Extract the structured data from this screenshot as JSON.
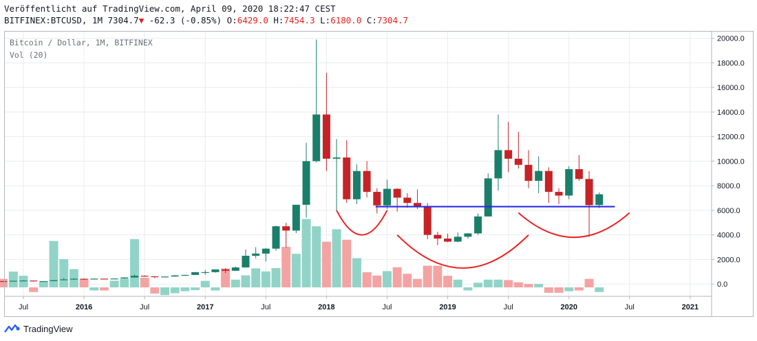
{
  "header": {
    "published": "Veröffentlicht auf TradingView.com, April 09, 2020 18:22:47 CEST",
    "symbol": "BITFINEX:BTCUSD, 1M",
    "last": "7304.7",
    "change_arrow": "▼",
    "change": "-62.3 (-0.85%)",
    "o_label": "O:",
    "o_value": "6429.0",
    "h_label": "H:",
    "h_value": "7454.3",
    "l_label": "L:",
    "l_value": "6180.0",
    "c_label": "C:",
    "c_value": "7304.7"
  },
  "legend": {
    "series": "Bitcoin / Dollar, 1M, BITFINEX",
    "volume": "Vol (20)"
  },
  "footer": {
    "brand": "TradingView"
  },
  "colors": {
    "up": "#1a7f6a",
    "down": "#c62326",
    "vol_up": "#91d4c7",
    "vol_down": "#f4a3a3",
    "support_line": "#2b2bdf",
    "annotation": "#ee2222",
    "grid": "#e8ebef",
    "axis_text": "#131722"
  },
  "chart_data": {
    "type": "candlestick",
    "interval": "1M",
    "ylim": [
      -1000,
      20600
    ],
    "y_ticks": [
      "20000.0",
      "18000.0",
      "16000.0",
      "14000.0",
      "12000.0",
      "10000.0",
      "8000.0",
      "6000.0",
      "4000.0",
      "2000.0",
      "0.0"
    ],
    "x_ticks": [
      {
        "label": "Jul",
        "date": "2015-07"
      },
      {
        "label": "2016",
        "date": "2016-01"
      },
      {
        "label": "Jul",
        "date": "2016-07"
      },
      {
        "label": "2017",
        "date": "2017-01"
      },
      {
        "label": "Jul",
        "date": "2017-07"
      },
      {
        "label": "2018",
        "date": "2018-01"
      },
      {
        "label": "Jul",
        "date": "2018-07"
      },
      {
        "label": "2019",
        "date": "2019-01"
      },
      {
        "label": "Jul",
        "date": "2019-07"
      },
      {
        "label": "2020",
        "date": "2020-01"
      },
      {
        "label": "Jul",
        "date": "2020-07"
      },
      {
        "label": "2021",
        "date": "2021-01"
      }
    ],
    "candles": [
      {
        "date": "2015-05",
        "open": 236,
        "high": 245,
        "low": 225,
        "close": 230,
        "volume": 550
      },
      {
        "date": "2015-06",
        "open": 230,
        "high": 268,
        "low": 220,
        "close": 263,
        "volume": 1020
      },
      {
        "date": "2015-07",
        "open": 263,
        "high": 318,
        "low": 255,
        "close": 284,
        "volume": 750
      },
      {
        "date": "2015-08",
        "open": 284,
        "high": 285,
        "low": 195,
        "close": 230,
        "volume": -300
      },
      {
        "date": "2015-09",
        "open": 230,
        "high": 245,
        "low": 225,
        "close": 236,
        "volume": 400
      },
      {
        "date": "2015-10",
        "open": 236,
        "high": 325,
        "low": 235,
        "close": 314,
        "volume": 3000
      },
      {
        "date": "2015-11",
        "open": 314,
        "high": 502,
        "low": 300,
        "close": 377,
        "volume": 1820
      },
      {
        "date": "2015-12",
        "open": 377,
        "high": 465,
        "low": 350,
        "close": 430,
        "volume": 1180
      },
      {
        "date": "2016-01",
        "open": 430,
        "high": 462,
        "low": 350,
        "close": 368,
        "volume": 550
      },
      {
        "date": "2016-02",
        "open": 368,
        "high": 443,
        "low": 367,
        "close": 437,
        "volume": -200
      },
      {
        "date": "2016-03",
        "open": 437,
        "high": 440,
        "low": 400,
        "close": 416,
        "volume": -200
      },
      {
        "date": "2016-04",
        "open": 416,
        "high": 468,
        "low": 415,
        "close": 448,
        "volume": 430
      },
      {
        "date": "2016-05",
        "open": 448,
        "high": 550,
        "low": 435,
        "close": 532,
        "volume": 550
      },
      {
        "date": "2016-06",
        "open": 532,
        "high": 780,
        "low": 515,
        "close": 673,
        "volume": 3120
      },
      {
        "date": "2016-07",
        "open": 673,
        "high": 705,
        "low": 590,
        "close": 624,
        "volume": 620
      },
      {
        "date": "2016-08",
        "open": 624,
        "high": 630,
        "low": 470,
        "close": 575,
        "volume": -400
      },
      {
        "date": "2016-09",
        "open": 575,
        "high": 628,
        "low": 570,
        "close": 609,
        "volume": -500
      },
      {
        "date": "2016-10",
        "open": 609,
        "high": 730,
        "low": 600,
        "close": 700,
        "volume": -380
      },
      {
        "date": "2016-11",
        "open": 700,
        "high": 755,
        "low": 680,
        "close": 742,
        "volume": -250
      },
      {
        "date": "2016-12",
        "open": 742,
        "high": 980,
        "low": 740,
        "close": 965,
        "volume": -180
      },
      {
        "date": "2017-01",
        "open": 965,
        "high": 1150,
        "low": 750,
        "close": 970,
        "volume": 420
      },
      {
        "date": "2017-02",
        "open": 970,
        "high": 1200,
        "low": 920,
        "close": 1190,
        "volume": -200
      },
      {
        "date": "2017-03",
        "open": 1190,
        "high": 1300,
        "low": 890,
        "close": 1080,
        "volume": 1220
      },
      {
        "date": "2017-04",
        "open": 1080,
        "high": 1420,
        "low": 1075,
        "close": 1350,
        "volume": 500
      },
      {
        "date": "2017-05",
        "open": 1350,
        "high": 2800,
        "low": 1350,
        "close": 2300,
        "volume": 780
      },
      {
        "date": "2017-06",
        "open": 2300,
        "high": 3000,
        "low": 2100,
        "close": 2480,
        "volume": 1230
      },
      {
        "date": "2017-07",
        "open": 2480,
        "high": 2920,
        "low": 1830,
        "close": 2880,
        "volume": 1030
      },
      {
        "date": "2017-08",
        "open": 2880,
        "high": 4750,
        "low": 2700,
        "close": 4700,
        "volume": 1250
      },
      {
        "date": "2017-09",
        "open": 4700,
        "high": 4980,
        "low": 2950,
        "close": 4350,
        "volume": 2620
      },
      {
        "date": "2017-10",
        "open": 4350,
        "high": 6450,
        "low": 4150,
        "close": 6450,
        "volume": 2170
      },
      {
        "date": "2017-11",
        "open": 6450,
        "high": 11500,
        "low": 5400,
        "close": 10000,
        "volume": 4420
      },
      {
        "date": "2017-12",
        "open": 10000,
        "high": 19900,
        "low": 9900,
        "close": 13800,
        "volume": 3950
      },
      {
        "date": "2018-01",
        "open": 13800,
        "high": 17200,
        "low": 9200,
        "close": 10200,
        "volume": 2950
      },
      {
        "date": "2018-02",
        "open": 10200,
        "high": 11800,
        "low": 6000,
        "close": 10300,
        "volume": 3760
      },
      {
        "date": "2018-03",
        "open": 10300,
        "high": 11700,
        "low": 6600,
        "close": 6900,
        "volume": 3080
      },
      {
        "date": "2018-04",
        "open": 6900,
        "high": 9750,
        "low": 6500,
        "close": 9200,
        "volume": 1890
      },
      {
        "date": "2018-05",
        "open": 9200,
        "high": 10000,
        "low": 7050,
        "close": 7500,
        "volume": 980
      },
      {
        "date": "2018-06",
        "open": 7500,
        "high": 7800,
        "low": 5750,
        "close": 6400,
        "volume": 760
      },
      {
        "date": "2018-07",
        "open": 6400,
        "high": 8500,
        "low": 6100,
        "close": 7750,
        "volume": 1050
      },
      {
        "date": "2018-08",
        "open": 7750,
        "high": 7800,
        "low": 5900,
        "close": 7030,
        "volume": 1300
      },
      {
        "date": "2018-09",
        "open": 7030,
        "high": 7400,
        "low": 6200,
        "close": 6600,
        "volume": 880
      },
      {
        "date": "2018-10",
        "open": 6600,
        "high": 7700,
        "low": 6100,
        "close": 6300,
        "volume": 550
      },
      {
        "date": "2018-11",
        "open": 6300,
        "high": 6600,
        "low": 3650,
        "close": 4000,
        "volume": 1400
      },
      {
        "date": "2018-12",
        "open": 4000,
        "high": 4250,
        "low": 3150,
        "close": 3700,
        "volume": 1400
      },
      {
        "date": "2019-01",
        "open": 3700,
        "high": 4100,
        "low": 3400,
        "close": 3450,
        "volume": 750
      },
      {
        "date": "2019-02",
        "open": 3450,
        "high": 4200,
        "low": 3400,
        "close": 3850,
        "volume": 500
      },
      {
        "date": "2019-03",
        "open": 3850,
        "high": 4150,
        "low": 3700,
        "close": 4120,
        "volume": -200
      },
      {
        "date": "2019-04",
        "open": 4120,
        "high": 5750,
        "low": 4000,
        "close": 5500,
        "volume": 300
      },
      {
        "date": "2019-05",
        "open": 5500,
        "high": 9000,
        "low": 5500,
        "close": 8600,
        "volume": 500
      },
      {
        "date": "2019-06",
        "open": 8600,
        "high": 13800,
        "low": 7600,
        "close": 10900,
        "volume": 500
      },
      {
        "date": "2019-07",
        "open": 10900,
        "high": 13200,
        "low": 9100,
        "close": 10200,
        "volume": 470
      },
      {
        "date": "2019-08",
        "open": 10200,
        "high": 12400,
        "low": 9400,
        "close": 9700,
        "volume": 330
      },
      {
        "date": "2019-09",
        "open": 9700,
        "high": 10900,
        "low": 7800,
        "close": 8400,
        "volume": 220
      },
      {
        "date": "2019-10",
        "open": 8400,
        "high": 10400,
        "low": 7400,
        "close": 9200,
        "volume": 220
      },
      {
        "date": "2019-11",
        "open": 9200,
        "high": 9500,
        "low": 6600,
        "close": 7500,
        "volume": -350
      },
      {
        "date": "2019-12",
        "open": 7500,
        "high": 7800,
        "low": 6500,
        "close": 7200,
        "volume": -350
      },
      {
        "date": "2020-01",
        "open": 7200,
        "high": 9600,
        "low": 6900,
        "close": 9350,
        "volume": -250
      },
      {
        "date": "2020-02",
        "open": 9350,
        "high": 10500,
        "low": 8400,
        "close": 8550,
        "volume": -200
      },
      {
        "date": "2020-03",
        "open": 8550,
        "high": 9200,
        "low": 3850,
        "close": 6420,
        "volume": 550
      },
      {
        "date": "2020-04",
        "open": 6429.0,
        "high": 7454.3,
        "low": 6180.0,
        "close": 7304.7,
        "volume": -300
      }
    ],
    "support_level": 6300,
    "support_from": "2018-06",
    "support_to": "2020-05",
    "annotation_arcs": [
      {
        "from": "2018-02",
        "to": "2018-07",
        "mid_value": 4000,
        "edge_value": 6000
      },
      {
        "from": "2018-08",
        "to": "2019-09",
        "mid_value": 1300,
        "edge_value": 4000
      },
      {
        "from": "2019-08",
        "to": "2020-07",
        "mid_value": 3800,
        "edge_value": 5800
      }
    ]
  }
}
